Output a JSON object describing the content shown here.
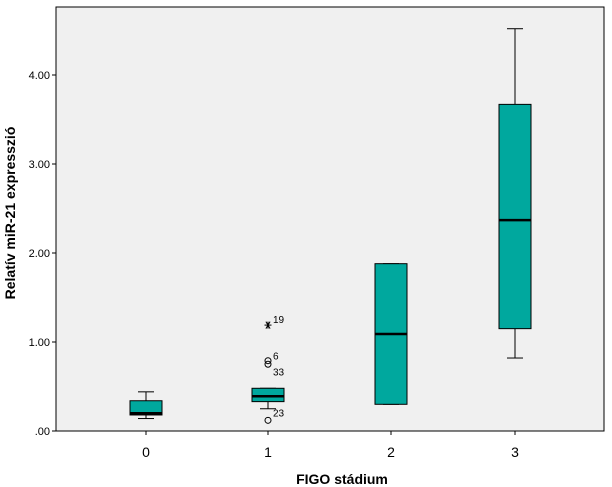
{
  "chart_data": {
    "type": "boxplot",
    "title": "",
    "xlabel": "FIGO stádium",
    "ylabel": "Relatív miR-21 expresszió",
    "ylim": [
      0,
      4.5
    ],
    "yticks": [
      0,
      1,
      2,
      3,
      4
    ],
    "ytick_labels": [
      ".00",
      "1.00",
      "2.00",
      "3.00",
      "4.00"
    ],
    "categories": [
      "0",
      "1",
      "2",
      "3"
    ],
    "grid": false,
    "colors": {
      "box_fill": "#00A89E",
      "plot_background": "#F0F0F0",
      "stroke": "#000000"
    },
    "boxes": [
      {
        "category": "0",
        "whisker_low": 0.14,
        "q1": 0.18,
        "median": 0.2,
        "q3": 0.34,
        "whisker_high": 0.44
      },
      {
        "category": "1",
        "whisker_low": 0.25,
        "q1": 0.33,
        "median": 0.39,
        "q3": 0.48,
        "whisker_high": 0.48
      },
      {
        "category": "2",
        "whisker_low": 0.3,
        "q1": 0.3,
        "median": 1.09,
        "q3": 1.88,
        "whisker_high": 1.88
      },
      {
        "category": "3",
        "whisker_low": 0.82,
        "q1": 1.15,
        "median": 2.37,
        "q3": 3.67,
        "whisker_high": 4.52
      }
    ],
    "outliers": [
      {
        "category": "1",
        "value": 1.19,
        "marker": "star",
        "label": "19"
      },
      {
        "category": "1",
        "value": 0.79,
        "marker": "circle",
        "label": "6"
      },
      {
        "category": "1",
        "value": 0.75,
        "marker": "circle",
        "label": "33"
      },
      {
        "category": "1",
        "value": 0.24,
        "marker": "dash",
        "label": "23"
      },
      {
        "category": "1",
        "value": 0.12,
        "marker": "circle",
        "label": ""
      }
    ]
  }
}
